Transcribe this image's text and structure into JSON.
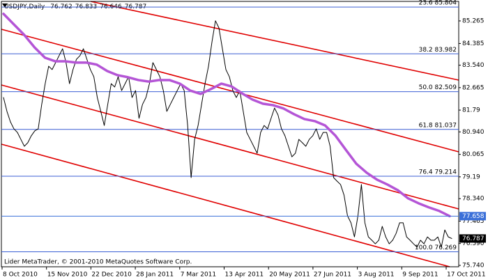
{
  "chart_data": {
    "type": "line",
    "title": "USDJPY,Daily",
    "ohlc": [
      76.762,
      76.833,
      76.646,
      76.787
    ],
    "footer": "Lider MetaTrader, © 2001-2010 MetaQuotes Software Corp.",
    "x_labels": [
      "8 Oct 2010",
      "15 Nov 2010",
      "22 Dec 2010",
      "28 Jan 2011",
      "7 Mar 2011",
      "13 Apr 2011",
      "20 May 2011",
      "27 Jun 2011",
      "3 Aug 2011",
      "9 Sep 2011",
      "17 Oct 2011"
    ],
    "ylim": [
      75.686,
      86.025
    ],
    "yticks": [
      85.265,
      84.385,
      {
        "value": 83.54,
        "label": "83.540"
      },
      82.665,
      81.79,
      {
        "value": 80.94,
        "label": "80.940"
      },
      80.065,
      79.19,
      {
        "value": 78.34,
        "label": "78.340"
      },
      77.465,
      {
        "value": 76.59,
        "label": "76.590"
      },
      {
        "value": 75.74,
        "label": "75.740"
      }
    ],
    "series": [
      {
        "color": "#000000",
        "width": 1,
        "values": [
          82.28,
          81.74,
          81.33,
          81.06,
          80.92,
          80.65,
          80.38,
          80.52,
          80.79,
          80.98,
          81.06,
          82.01,
          82.82,
          83.5,
          83.37,
          83.64,
          83.91,
          84.18,
          83.64,
          82.82,
          83.37,
          83.77,
          83.91,
          84.18,
          83.77,
          83.37,
          83.09,
          82.28,
          81.74,
          81.19,
          82.01,
          82.82,
          82.69,
          83.09,
          82.55,
          82.82,
          83.09,
          82.28,
          82.55,
          81.47,
          82.01,
          82.28,
          82.82,
          83.64,
          83.37,
          83.09,
          82.55,
          81.74,
          82.01,
          82.28,
          82.55,
          82.82,
          82.55,
          81.19,
          79.16,
          80.65,
          81.19,
          82.01,
          82.82,
          83.5,
          84.45,
          85.27,
          84.99,
          84.18,
          83.37,
          83.09,
          82.55,
          82.28,
          82.55,
          81.74,
          80.92,
          80.65,
          80.38,
          80.11,
          80.92,
          81.19,
          81.06,
          81.47,
          81.87,
          81.6,
          81.06,
          80.79,
          80.38,
          79.97,
          80.11,
          80.65,
          80.52,
          80.38,
          80.65,
          80.79,
          81.06,
          80.65,
          80.92,
          80.92,
          80.38,
          79.16,
          79.02,
          78.89,
          78.48,
          77.67,
          77.4,
          76.85,
          77.67,
          78.89,
          77.4,
          76.85,
          76.72,
          76.58,
          76.72,
          77.26,
          76.85,
          76.58,
          76.72,
          76.99,
          77.4,
          77.4,
          76.85,
          76.72,
          76.58,
          76.45,
          76.72,
          76.58,
          76.85,
          76.72,
          76.72,
          76.85,
          76.45,
          77.12,
          76.85,
          76.787
        ]
      },
      {
        "color": "#b455d6",
        "width": 3.5,
        "values": [
          85.54,
          85.13,
          84.72,
          84.23,
          83.83,
          83.69,
          83.69,
          83.64,
          83.64,
          83.56,
          83.31,
          83.15,
          83.07,
          82.96,
          82.9,
          82.96,
          82.96,
          82.82,
          82.55,
          82.42,
          82.61,
          82.82,
          82.71,
          82.44,
          82.2,
          82.04,
          81.98,
          81.85,
          81.63,
          81.44,
          81.36,
          81.19,
          80.79,
          80.24,
          79.7,
          79.35,
          79.08,
          78.89,
          78.67,
          78.35,
          78.16,
          78.0,
          77.86,
          77.658
        ]
      }
    ],
    "fib_levels": [
      {
        "value": 85.804,
        "label": "23.6 85.804"
      },
      {
        "value": 83.982,
        "label": "38.2 83.982"
      },
      {
        "value": 82.509,
        "label": "50.0 82.509"
      },
      {
        "value": 81.037,
        "label": "61.8 81.037"
      },
      {
        "value": 79.214,
        "label": "76.4 79.214"
      },
      {
        "value": 76.269,
        "label": "100.0 76.269"
      }
    ],
    "fib_color": "#3b5fd4",
    "markers": [
      {
        "value": 77.658,
        "color": "#3a6fd8",
        "line": true
      },
      {
        "value": 76.787,
        "color": "#000000",
        "line": false
      }
    ]
  }
}
